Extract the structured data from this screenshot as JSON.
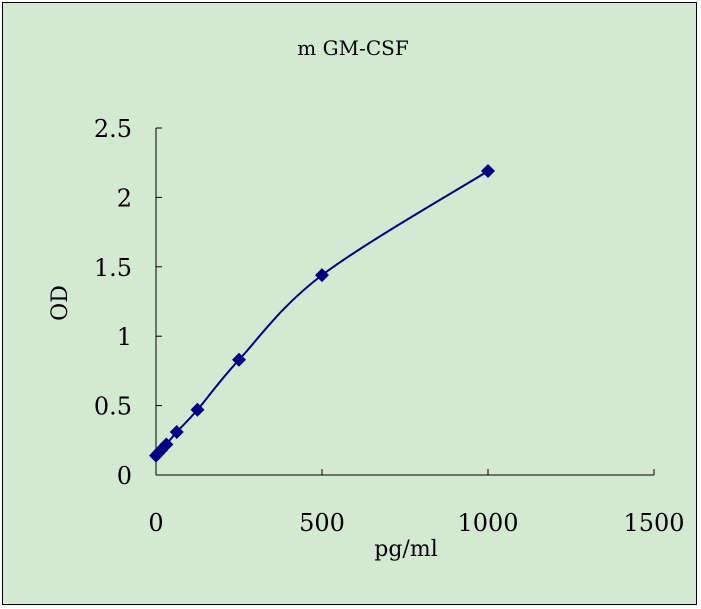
{
  "colors": {
    "background": "#d4e9d2",
    "series": "#000080",
    "axis": "#000000"
  },
  "chart_data": {
    "type": "scatter",
    "title": "m GM-CSF",
    "xlabel": "pg/ml",
    "ylabel": "OD",
    "xlim": [
      0,
      1500
    ],
    "ylim": [
      0,
      2.5
    ],
    "xticks": [
      0,
      500,
      1000,
      1500
    ],
    "yticks": [
      0,
      0.5,
      1,
      1.5,
      2,
      2.5
    ],
    "xtick_labels": [
      "0",
      "500",
      "1000",
      "1500"
    ],
    "ytick_labels": [
      "0",
      "0.5",
      "1",
      "1.5",
      "2",
      "2.5"
    ],
    "grid": false,
    "legend": false,
    "smooth_line": true,
    "marker": "diamond",
    "series": [
      {
        "x": [
          0,
          7.8,
          15.6,
          31.25,
          62.5,
          125,
          250,
          500,
          1000
        ],
        "y": [
          0.14,
          0.16,
          0.18,
          0.22,
          0.31,
          0.47,
          0.83,
          1.44,
          2.19
        ]
      }
    ]
  }
}
